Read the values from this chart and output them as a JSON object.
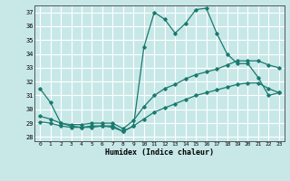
{
  "xlabel": "Humidex (Indice chaleur)",
  "bg_color": "#c8e8e8",
  "grid_color": "#ffffff",
  "line_color": "#1a7a6e",
  "xlim": [
    -0.5,
    23.5
  ],
  "ylim": [
    27.7,
    37.5
  ],
  "yticks": [
    28,
    29,
    30,
    31,
    32,
    33,
    34,
    35,
    36,
    37
  ],
  "xticks": [
    0,
    1,
    2,
    3,
    4,
    5,
    6,
    7,
    8,
    9,
    10,
    11,
    12,
    13,
    14,
    15,
    16,
    17,
    18,
    19,
    20,
    21,
    22,
    23
  ],
  "line1_x": [
    0,
    1,
    2,
    3,
    4,
    5,
    6,
    7,
    8,
    9,
    10,
    11,
    12,
    13,
    14,
    15,
    16,
    17,
    18,
    19,
    20,
    21,
    22,
    23
  ],
  "line1_y": [
    31.5,
    30.5,
    29.0,
    28.8,
    28.7,
    28.8,
    28.8,
    28.8,
    28.4,
    28.8,
    34.5,
    37.0,
    36.5,
    35.5,
    36.2,
    37.2,
    37.3,
    35.5,
    34.0,
    33.3,
    33.3,
    32.3,
    31.0,
    31.2
  ],
  "line2_x": [
    0,
    1,
    2,
    3,
    4,
    5,
    6,
    7,
    8,
    9,
    10,
    11,
    12,
    13,
    14,
    15,
    16,
    17,
    18,
    19,
    20,
    21,
    22,
    23
  ],
  "line2_y": [
    29.5,
    29.3,
    29.0,
    28.9,
    28.9,
    29.0,
    29.0,
    29.0,
    28.6,
    29.2,
    30.2,
    31.0,
    31.5,
    31.8,
    32.2,
    32.5,
    32.7,
    32.9,
    33.2,
    33.5,
    33.5,
    33.5,
    33.2,
    33.0
  ],
  "line3_x": [
    0,
    1,
    2,
    3,
    4,
    5,
    6,
    7,
    8,
    9,
    10,
    11,
    12,
    13,
    14,
    15,
    16,
    17,
    18,
    19,
    20,
    21,
    22,
    23
  ],
  "line3_y": [
    29.1,
    29.0,
    28.8,
    28.7,
    28.7,
    28.7,
    28.8,
    28.7,
    28.4,
    28.8,
    29.3,
    29.8,
    30.1,
    30.4,
    30.7,
    31.0,
    31.2,
    31.4,
    31.6,
    31.8,
    31.9,
    31.9,
    31.5,
    31.2
  ]
}
